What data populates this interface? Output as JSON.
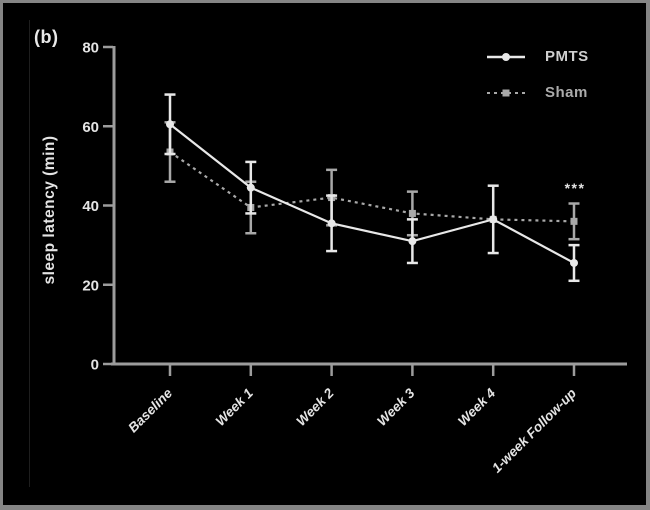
{
  "figure_label": "(b)",
  "colors": {
    "background": "#000000",
    "border": "#858585",
    "axis": "#9c9c9c",
    "text": "#e4e4e4",
    "pmts": "#e8e8e8",
    "sham": "#a8a8a8"
  },
  "legend": {
    "position": "top-right",
    "items": [
      {
        "label": "PMTS",
        "line": "solid",
        "marker": "circle"
      },
      {
        "label": "Sham",
        "line": "dashed",
        "marker": "square"
      }
    ]
  },
  "chart_data": {
    "type": "line",
    "title": "",
    "xlabel": "",
    "ylabel": "sleep latency (min)",
    "ylim": [
      0,
      80
    ],
    "yticks": [
      0,
      20,
      40,
      60,
      80
    ],
    "grid": false,
    "legend_position": "top-right",
    "categories": [
      "Baseline",
      "Week 1",
      "Week 2",
      "Week 3",
      "Week 4",
      "1-week Follow-up"
    ],
    "series": [
      {
        "name": "PMTS",
        "style": "solid",
        "marker": "circle",
        "values": [
          60.5,
          44.5,
          35.5,
          31,
          36.5,
          25.5
        ],
        "errors": [
          7.5,
          6.5,
          7,
          5.5,
          8.5,
          4.5
        ]
      },
      {
        "name": "Sham",
        "style": "dashed",
        "marker": "square",
        "values": [
          53.5,
          39.5,
          42,
          38,
          36.5,
          36
        ],
        "errors": [
          7.5,
          6.5,
          7,
          5.5,
          0,
          4.5
        ]
      }
    ],
    "annotations": [
      {
        "text": "***",
        "category_index": 5,
        "y": 43.2,
        "meaning": "significance-marker"
      }
    ]
  }
}
